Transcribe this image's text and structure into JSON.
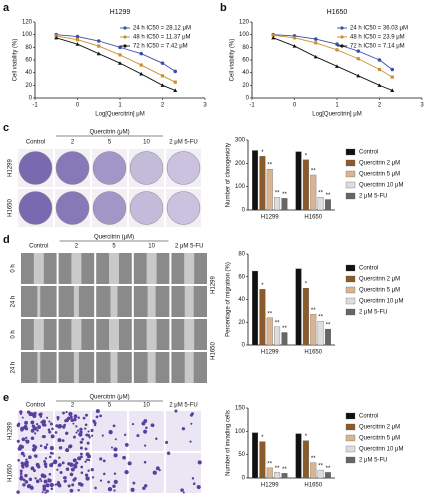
{
  "panel_labels": [
    "a",
    "b",
    "c",
    "d",
    "e"
  ],
  "image_panels": [
    {
      "header": "Quercitrin (μM)",
      "columns": [
        "Control",
        "2",
        "5",
        "10",
        "2 μM 5-FU"
      ],
      "rows": [
        "H1299",
        "H1650"
      ]
    },
    {
      "header": "Quercitrin (μM)",
      "columns": [
        "Control",
        "2",
        "5",
        "10",
        "2 μM 5-FU"
      ],
      "rows": [
        "0 h",
        "24 h",
        "0 h",
        "24 h"
      ],
      "groups": [
        "H1299",
        "H1650"
      ]
    },
    {
      "header": "Quercitrin (μM)",
      "columns": [
        "Control",
        "2",
        "5",
        "10",
        "2 μM 5-FU"
      ],
      "rows": [
        "H1299",
        "H1650"
      ]
    }
  ],
  "chart_data": [
    {
      "type": "line",
      "title": "H1299",
      "x_label": "Log[Quercitrin] μM",
      "y_label": "Cell viability (%)",
      "x": [
        -0.5,
        0,
        0.5,
        1,
        1.5,
        2,
        2.3
      ],
      "xlim": [
        -1,
        3
      ],
      "xticks": [
        -1,
        0,
        1,
        2,
        3
      ],
      "ylim": [
        0,
        120
      ],
      "yticks": [
        0,
        20,
        40,
        60,
        80,
        100,
        120
      ],
      "series": [
        {
          "name": "24 h IC50 = 28.12 μM",
          "color": "#3a4fa8",
          "marker": "circle",
          "values": [
            100,
            97,
            90,
            80,
            70,
            55,
            42
          ]
        },
        {
          "name": "48 h IC50 = 11.37 μM",
          "color": "#c8902e",
          "marker": "square",
          "values": [
            98,
            92,
            82,
            68,
            52,
            35,
            25
          ]
        },
        {
          "name": "72 h IC50 = 7.42 μM",
          "color": "#111111",
          "marker": "triangle",
          "values": [
            95,
            85,
            70,
            55,
            38,
            20,
            12
          ]
        }
      ]
    },
    {
      "type": "line",
      "title": "H1650",
      "x_label": "Log[Quercitrin] μM",
      "y_label": "Cell viability (%)",
      "x": [
        -0.5,
        0,
        0.5,
        1,
        1.5,
        2,
        2.3
      ],
      "xlim": [
        -1,
        3
      ],
      "xticks": [
        -1,
        0,
        1,
        2,
        3
      ],
      "ylim": [
        0,
        120
      ],
      "yticks": [
        0,
        20,
        40,
        60,
        80,
        100,
        120
      ],
      "series": [
        {
          "name": "24 h IC50 = 36.03 μM",
          "color": "#3a4fa8",
          "marker": "circle",
          "values": [
            100,
            98,
            93,
            85,
            74,
            60,
            45
          ]
        },
        {
          "name": "48 h IC50 = 23.9 μM",
          "color": "#c8902e",
          "marker": "square",
          "values": [
            99,
            95,
            87,
            76,
            62,
            45,
            33
          ]
        },
        {
          "name": "72 h IC50 = 7.14 μM",
          "color": "#111111",
          "marker": "triangle",
          "values": [
            95,
            82,
            65,
            50,
            35,
            20,
            12
          ]
        }
      ]
    },
    {
      "type": "bar",
      "y_label": "Number of clonogenicity",
      "categories": [
        "H1299",
        "H1650"
      ],
      "ylim": [
        0,
        300
      ],
      "yticks": [
        0,
        100,
        200,
        300
      ],
      "series": [
        {
          "name": "Control",
          "color": "#111111",
          "values": [
            255,
            250
          ],
          "significance": [
            null,
            null
          ]
        },
        {
          "name": "Quercitrin 2 μM",
          "color": "#8b5a2b",
          "values": [
            230,
            215
          ],
          "significance": [
            "*",
            "*"
          ]
        },
        {
          "name": "Quercitrin 5 μM",
          "color": "#d9b48f",
          "values": [
            175,
            150
          ],
          "significance": [
            "**",
            "**"
          ]
        },
        {
          "name": "Quercitrin 10 μM",
          "color": "#dddddd",
          "values": [
            55,
            55
          ],
          "significance": [
            "**",
            "**"
          ]
        },
        {
          "name": "2 μM 5-FU",
          "color": "#666666",
          "values": [
            50,
            45
          ],
          "significance": [
            "**",
            "**"
          ]
        }
      ]
    },
    {
      "type": "bar",
      "y_label": "Percentage of migration (%)",
      "categories": [
        "H1299",
        "H1650"
      ],
      "ylim": [
        0,
        80
      ],
      "yticks": [
        0,
        20,
        40,
        60,
        80
      ],
      "series": [
        {
          "name": "Control",
          "color": "#111111",
          "values": [
            65,
            67
          ],
          "significance": [
            null,
            null
          ]
        },
        {
          "name": "Quercitrin 2 μM",
          "color": "#8b5a2b",
          "values": [
            49,
            50
          ],
          "significance": [
            "*",
            "*"
          ]
        },
        {
          "name": "Quercitrin 5 μM",
          "color": "#d9b48f",
          "values": [
            24,
            27
          ],
          "significance": [
            "**",
            "**"
          ]
        },
        {
          "name": "Quercitrin 10 μM",
          "color": "#dddddd",
          "values": [
            16,
            21
          ],
          "significance": [
            "**",
            "**"
          ]
        },
        {
          "name": "2 μM 5-FU",
          "color": "#666666",
          "values": [
            11,
            14
          ],
          "significance": [
            "**",
            "**"
          ]
        }
      ]
    },
    {
      "type": "bar",
      "y_label": "Number of invading cells",
      "categories": [
        "H1299",
        "H1650"
      ],
      "ylim": [
        0,
        150
      ],
      "yticks": [
        0,
        50,
        100,
        150
      ],
      "series": [
        {
          "name": "Control",
          "color": "#111111",
          "values": [
            97,
            95
          ],
          "significance": [
            null,
            null
          ]
        },
        {
          "name": "Quercitrin 2 μM",
          "color": "#8b5a2b",
          "values": [
            78,
            80
          ],
          "significance": [
            "*",
            "*"
          ]
        },
        {
          "name": "Quercitrin 5 μM",
          "color": "#d9b48f",
          "values": [
            22,
            33
          ],
          "significance": [
            "**",
            "**"
          ]
        },
        {
          "name": "Quercitrin 10 μM",
          "color": "#dddddd",
          "values": [
            12,
            17
          ],
          "significance": [
            "**",
            "**"
          ]
        },
        {
          "name": "2 μM 5-FU",
          "color": "#666666",
          "values": [
            10,
            12
          ],
          "significance": [
            "**",
            "**"
          ]
        }
      ]
    }
  ]
}
